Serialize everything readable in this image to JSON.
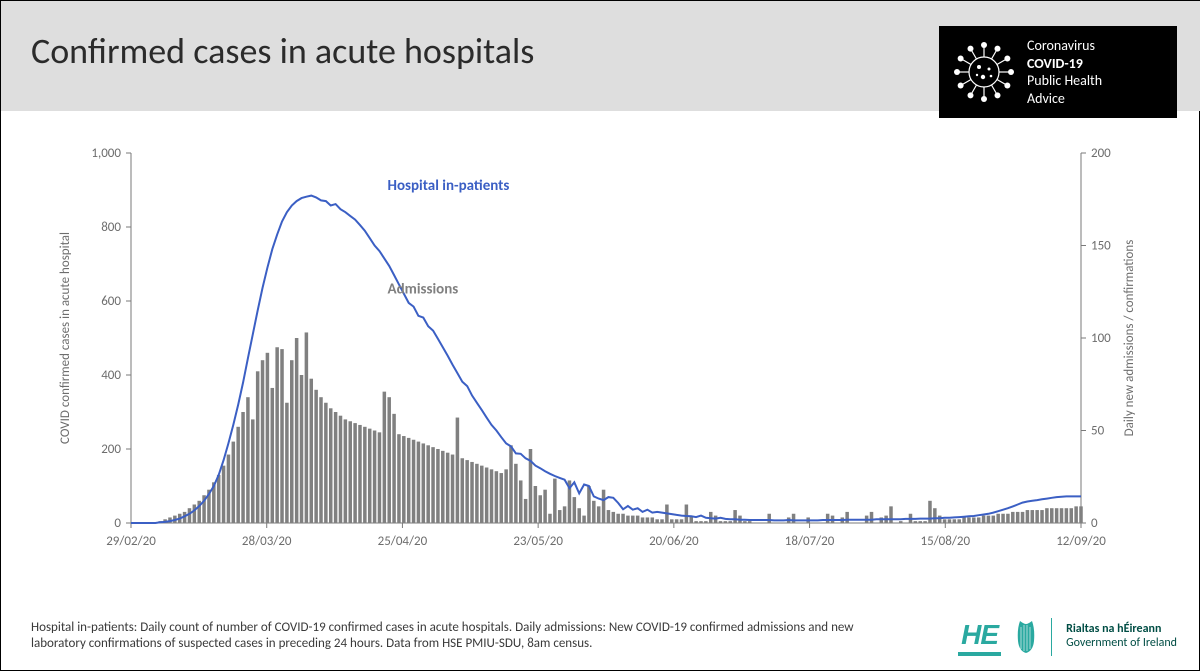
{
  "header": {
    "title": "Confirmed cases in acute hospitals",
    "logo": {
      "line1": "Coronavirus",
      "line2": "COVID-19",
      "line3": "Public Health",
      "line4": "Advice"
    }
  },
  "chart": {
    "type": "bar+line",
    "background_color": "#ffffff",
    "axis_color": "#7a7a7a",
    "tick_fontsize": 13,
    "label_fontsize": 13,
    "left_axis": {
      "title": "COVID confirmed cases in acute hospital",
      "min": 0,
      "max": 1000,
      "tick_step": 200,
      "ticks": [
        0,
        200,
        400,
        600,
        800,
        1000
      ]
    },
    "right_axis": {
      "title": "Daily new admissions / confirmations",
      "min": 0,
      "max": 200,
      "tick_step": 50,
      "ticks": [
        0,
        50,
        100,
        150,
        200
      ]
    },
    "x_axis": {
      "ticks": [
        "29/02/20",
        "28/03/20",
        "25/04/20",
        "23/05/20",
        "20/06/20",
        "18/07/20",
        "15/08/20",
        "12/09/20"
      ]
    },
    "series_line": {
      "name": "Hospital in-patients",
      "color": "#3b5fc4",
      "line_width": 2,
      "label_pos": {
        "x": 0.27,
        "y": 0.1
      },
      "values": [
        0,
        0,
        0,
        0,
        0,
        0,
        2,
        3,
        5,
        8,
        12,
        18,
        25,
        34,
        46,
        60,
        78,
        100,
        130,
        170,
        215,
        265,
        320,
        380,
        445,
        510,
        575,
        635,
        690,
        740,
        780,
        815,
        840,
        858,
        870,
        878,
        882,
        885,
        880,
        872,
        870,
        858,
        862,
        848,
        840,
        830,
        820,
        805,
        790,
        770,
        750,
        735,
        715,
        695,
        670,
        645,
        620,
        595,
        585,
        560,
        555,
        532,
        520,
        498,
        475,
        452,
        428,
        405,
        382,
        370,
        345,
        325,
        305,
        285,
        265,
        250,
        232,
        215,
        207,
        188,
        187,
        175,
        168,
        155,
        148,
        140,
        133,
        127,
        122,
        117,
        94,
        110,
        80,
        104,
        100,
        72,
        66,
        62,
        70,
        68,
        54,
        37,
        46,
        36,
        40,
        30,
        36,
        28,
        30,
        28,
        26,
        24,
        22,
        20,
        19,
        18,
        16,
        20,
        14,
        13,
        12,
        14,
        11,
        10,
        10,
        9,
        9,
        8,
        8,
        8,
        8,
        8,
        7,
        7,
        7,
        8,
        7,
        7,
        7,
        7,
        7,
        7,
        8,
        8,
        8,
        8,
        8,
        9,
        9,
        9,
        9,
        9,
        9,
        10,
        10,
        10,
        10,
        10,
        10,
        11,
        11,
        11,
        12,
        12,
        12,
        13,
        13,
        14,
        14,
        15,
        16,
        17,
        18,
        19,
        21,
        23,
        25,
        28,
        32,
        36,
        40,
        45,
        50,
        55,
        58,
        60,
        62,
        64,
        66,
        68,
        70,
        71,
        72,
        72,
        72,
        72
      ]
    },
    "series_bar": {
      "name": "Admissions",
      "color": "#808080",
      "bar_width": 0.72,
      "label_pos": {
        "x": 0.27,
        "y": 0.38
      },
      "values": [
        0,
        0,
        0,
        0,
        0,
        0,
        1,
        2,
        3,
        4,
        5,
        6,
        8,
        10,
        12,
        15,
        18,
        22,
        26,
        31,
        37,
        44,
        52,
        60,
        68,
        56,
        82,
        88,
        92,
        73,
        95,
        94,
        65,
        88,
        100,
        80,
        103,
        78,
        72,
        68,
        65,
        62,
        60,
        58,
        56,
        55,
        54,
        53,
        52,
        51,
        50,
        49,
        71,
        68,
        59,
        48,
        47,
        46,
        45,
        44,
        43,
        42,
        41,
        40,
        39,
        38,
        37,
        57,
        35,
        34,
        33,
        32,
        31,
        30,
        29,
        28,
        27,
        29,
        42,
        32,
        23,
        13,
        40,
        20,
        15,
        18,
        5,
        24,
        7,
        9,
        23,
        14,
        8,
        4,
        20,
        12,
        9,
        18,
        7,
        6,
        5,
        5,
        4,
        4,
        4,
        3,
        3,
        3,
        2,
        2,
        10,
        2,
        2,
        2,
        10,
        4,
        1,
        1,
        1,
        6,
        4,
        1,
        1,
        1,
        7,
        4,
        1,
        1,
        0,
        0,
        0,
        5,
        0,
        0,
        0,
        3,
        5,
        0,
        0,
        3,
        0,
        0,
        0,
        5,
        4,
        0,
        3,
        6,
        0,
        0,
        0,
        4,
        6,
        0,
        3,
        4,
        9,
        0,
        1,
        0,
        5,
        1,
        1,
        1,
        12,
        8,
        4,
        2,
        2,
        2,
        2,
        3,
        3,
        3,
        3,
        4,
        4,
        4,
        5,
        5,
        5,
        6,
        6,
        6,
        7,
        7,
        7,
        7,
        8,
        8,
        8,
        8,
        8,
        8,
        9,
        9
      ]
    }
  },
  "footer": {
    "text": "Hospital in-patients: Daily count of number of COVID-19 confirmed cases in acute hospitals. Daily admissions: New COVID-19 confirmed admissions and new laboratory confirmations of suspected cases in preceding 24 hours. Data from HSE PMIU-SDU, 8am census."
  },
  "gov": {
    "hse": "HE",
    "gov1": "Rialtas na hÉireann",
    "gov2": "Government of Ireland"
  }
}
